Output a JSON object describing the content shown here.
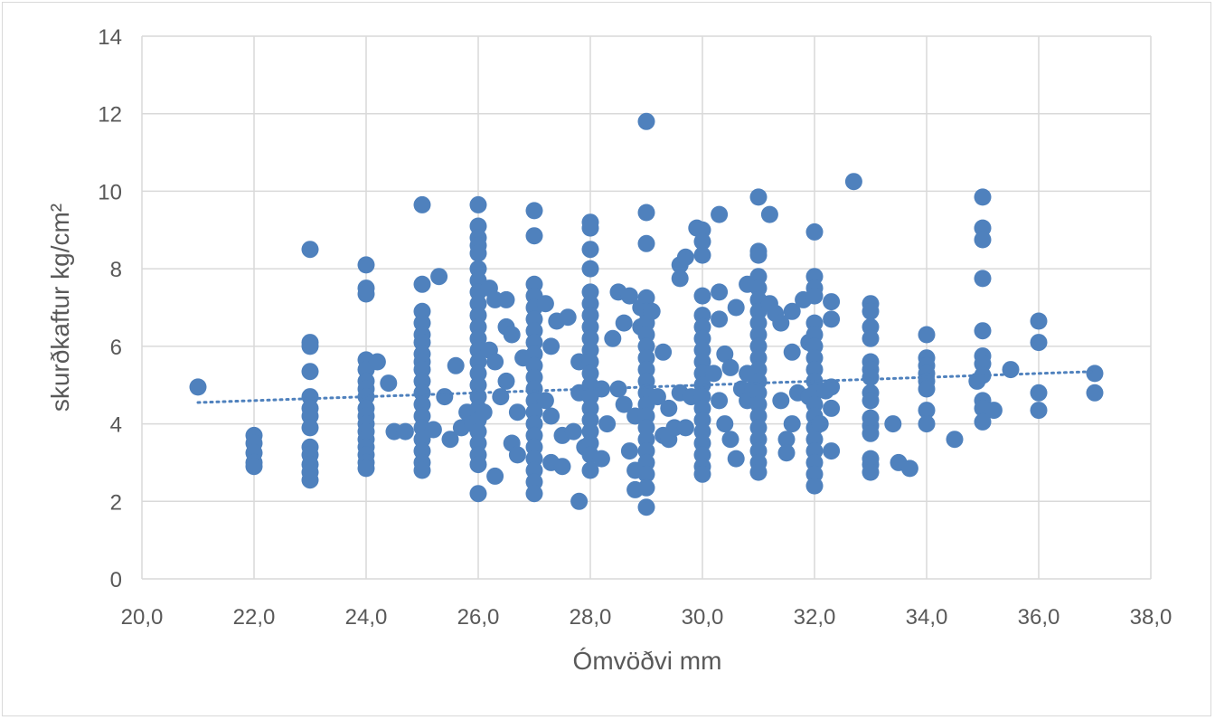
{
  "chart_data": {
    "type": "scatter",
    "xlabel": "Ómvöðvi mm",
    "ylabel": "skurðkaftur kg/cm²",
    "xlim": [
      20,
      38
    ],
    "ylim": [
      0,
      14
    ],
    "x_ticks": [
      "20,0",
      "22,0",
      "24,0",
      "26,0",
      "28,0",
      "30,0",
      "32,0",
      "34,0",
      "36,0",
      "38,0"
    ],
    "y_ticks": [
      "0",
      "2",
      "4",
      "6",
      "8",
      "10",
      "12",
      "14"
    ],
    "grid": true,
    "marker_color": "#4f81bd",
    "trendline": {
      "style": "dotted",
      "x": [
        21,
        37
      ],
      "y": [
        4.55,
        5.35
      ]
    },
    "points": [
      [
        21,
        4.95
      ],
      [
        22,
        3.7
      ],
      [
        22,
        3.5
      ],
      [
        22,
        3.25
      ],
      [
        22,
        3.0
      ],
      [
        22,
        2.9
      ],
      [
        23,
        8.5
      ],
      [
        23,
        6.1
      ],
      [
        23,
        6.0
      ],
      [
        23,
        5.35
      ],
      [
        23,
        4.7
      ],
      [
        23,
        4.4
      ],
      [
        23,
        4.2
      ],
      [
        23,
        3.9
      ],
      [
        23,
        3.4
      ],
      [
        23,
        3.2
      ],
      [
        23,
        2.95
      ],
      [
        23,
        2.75
      ],
      [
        23,
        2.55
      ],
      [
        24,
        8.1
      ],
      [
        24,
        7.5
      ],
      [
        24,
        7.35
      ],
      [
        24,
        5.65
      ],
      [
        24,
        5.4
      ],
      [
        24,
        5.1
      ],
      [
        24,
        4.9
      ],
      [
        24,
        4.7
      ],
      [
        24,
        4.4
      ],
      [
        24,
        4.2
      ],
      [
        24,
        4.0
      ],
      [
        24,
        3.8
      ],
      [
        24,
        3.6
      ],
      [
        24,
        3.4
      ],
      [
        24,
        3.2
      ],
      [
        24,
        3.0
      ],
      [
        24,
        2.85
      ],
      [
        24.2,
        5.6
      ],
      [
        24.4,
        5.05
      ],
      [
        24.5,
        3.8
      ],
      [
        24.7,
        3.8
      ],
      [
        25,
        9.65
      ],
      [
        25,
        7.6
      ],
      [
        25,
        6.9
      ],
      [
        25,
        6.6
      ],
      [
        25,
        6.3
      ],
      [
        25,
        6.1
      ],
      [
        25,
        5.8
      ],
      [
        25,
        5.6
      ],
      [
        25,
        5.4
      ],
      [
        25,
        5.1
      ],
      [
        25,
        4.8
      ],
      [
        25,
        4.5
      ],
      [
        25,
        4.2
      ],
      [
        25,
        3.9
      ],
      [
        25,
        3.6
      ],
      [
        25,
        3.3
      ],
      [
        25,
        3.0
      ],
      [
        25,
        2.8
      ],
      [
        25.3,
        7.8
      ],
      [
        25.2,
        3.85
      ],
      [
        25.4,
        4.7
      ],
      [
        25.5,
        3.6
      ],
      [
        25.6,
        5.5
      ],
      [
        25.7,
        3.9
      ],
      [
        25.8,
        4.3
      ],
      [
        25.9,
        4.0
      ],
      [
        26,
        9.65
      ],
      [
        26,
        9.1
      ],
      [
        26,
        8.8
      ],
      [
        26,
        8.6
      ],
      [
        26,
        8.4
      ],
      [
        26,
        8.0
      ],
      [
        26,
        7.7
      ],
      [
        26,
        7.4
      ],
      [
        26,
        7.1
      ],
      [
        26,
        6.8
      ],
      [
        26,
        6.5
      ],
      [
        26,
        6.2
      ],
      [
        26,
        5.9
      ],
      [
        26,
        5.6
      ],
      [
        26,
        5.3
      ],
      [
        26,
        5.0
      ],
      [
        26,
        4.7
      ],
      [
        26,
        4.4
      ],
      [
        26,
        4.1
      ],
      [
        26,
        3.8
      ],
      [
        26,
        3.5
      ],
      [
        26,
        3.2
      ],
      [
        26,
        2.95
      ],
      [
        26,
        2.2
      ],
      [
        26.2,
        7.5
      ],
      [
        26.3,
        7.2
      ],
      [
        26.2,
        5.9
      ],
      [
        26.3,
        5.6
      ],
      [
        26.1,
        4.3
      ],
      [
        26.3,
        2.65
      ],
      [
        26.5,
        7.2
      ],
      [
        26.5,
        6.5
      ],
      [
        26.6,
        6.3
      ],
      [
        26.4,
        4.7
      ],
      [
        26.5,
        5.1
      ],
      [
        26.6,
        3.5
      ],
      [
        26.7,
        3.2
      ],
      [
        26.8,
        5.7
      ],
      [
        26.7,
        4.3
      ],
      [
        27,
        9.5
      ],
      [
        27,
        8.85
      ],
      [
        27,
        7.6
      ],
      [
        27,
        7.3
      ],
      [
        27,
        7.0
      ],
      [
        27,
        6.7
      ],
      [
        27,
        6.4
      ],
      [
        27,
        6.1
      ],
      [
        27,
        5.8
      ],
      [
        27,
        5.5
      ],
      [
        27,
        5.2
      ],
      [
        27,
        4.9
      ],
      [
        27,
        4.6
      ],
      [
        27,
        4.3
      ],
      [
        27,
        4.0
      ],
      [
        27,
        3.7
      ],
      [
        27,
        3.4
      ],
      [
        27,
        3.1
      ],
      [
        27,
        2.8
      ],
      [
        27,
        2.5
      ],
      [
        27,
        2.2
      ],
      [
        27.2,
        7.1
      ],
      [
        27.3,
        6.0
      ],
      [
        27.4,
        6.65
      ],
      [
        27.2,
        4.6
      ],
      [
        27.3,
        4.2
      ],
      [
        27.3,
        3.0
      ],
      [
        27.5,
        2.9
      ],
      [
        27.6,
        6.75
      ],
      [
        27.5,
        3.7
      ],
      [
        27.7,
        3.8
      ],
      [
        27.8,
        2.0
      ],
      [
        27.8,
        5.6
      ],
      [
        27.8,
        4.8
      ],
      [
        27.9,
        3.4
      ],
      [
        28,
        9.2
      ],
      [
        28,
        9.05
      ],
      [
        28,
        8.5
      ],
      [
        28,
        8.0
      ],
      [
        28,
        7.4
      ],
      [
        28,
        7.1
      ],
      [
        28,
        6.8
      ],
      [
        28,
        6.5
      ],
      [
        28,
        6.2
      ],
      [
        28,
        5.9
      ],
      [
        28,
        5.6
      ],
      [
        28,
        5.3
      ],
      [
        28,
        5.0
      ],
      [
        28,
        4.7
      ],
      [
        28,
        4.4
      ],
      [
        28,
        4.1
      ],
      [
        28,
        3.8
      ],
      [
        28,
        3.5
      ],
      [
        28,
        3.2
      ],
      [
        28,
        2.8
      ],
      [
        28.2,
        4.9
      ],
      [
        28.2,
        3.1
      ],
      [
        28.3,
        4.0
      ],
      [
        28.4,
        6.2
      ],
      [
        28.5,
        7.4
      ],
      [
        28.5,
        4.9
      ],
      [
        28.6,
        6.6
      ],
      [
        28.6,
        4.5
      ],
      [
        28.7,
        3.3
      ],
      [
        28.7,
        7.3
      ],
      [
        28.8,
        2.8
      ],
      [
        28.8,
        2.3
      ],
      [
        28.8,
        4.2
      ],
      [
        28.9,
        7.0
      ],
      [
        28.9,
        6.5
      ],
      [
        29,
        11.8
      ],
      [
        29,
        9.45
      ],
      [
        29,
        8.65
      ],
      [
        29,
        7.25
      ],
      [
        29,
        6.9
      ],
      [
        29,
        6.6
      ],
      [
        29,
        6.3
      ],
      [
        29,
        6.0
      ],
      [
        29,
        5.7
      ],
      [
        29,
        5.4
      ],
      [
        29,
        5.1
      ],
      [
        29,
        4.8
      ],
      [
        29,
        4.5
      ],
      [
        29,
        4.2
      ],
      [
        29,
        3.9
      ],
      [
        29,
        3.6
      ],
      [
        29,
        3.3
      ],
      [
        29,
        3.0
      ],
      [
        29,
        2.7
      ],
      [
        29,
        2.35
      ],
      [
        29,
        1.85
      ],
      [
        29.1,
        6.9
      ],
      [
        29.2,
        4.7
      ],
      [
        29.3,
        5.85
      ],
      [
        29.3,
        3.7
      ],
      [
        29.4,
        3.6
      ],
      [
        29.4,
        4.4
      ],
      [
        29.5,
        3.9
      ],
      [
        29.6,
        7.75
      ],
      [
        29.6,
        8.1
      ],
      [
        29.7,
        8.3
      ],
      [
        29.6,
        4.8
      ],
      [
        29.7,
        3.9
      ],
      [
        29.8,
        4.7
      ],
      [
        29.9,
        9.05
      ],
      [
        30,
        9.0
      ],
      [
        30,
        8.7
      ],
      [
        30,
        8.35
      ],
      [
        30,
        7.3
      ],
      [
        30,
        6.8
      ],
      [
        30,
        6.5
      ],
      [
        30,
        6.2
      ],
      [
        30,
        5.9
      ],
      [
        30,
        5.6
      ],
      [
        30,
        5.3
      ],
      [
        30,
        5.0
      ],
      [
        30,
        4.7
      ],
      [
        30,
        4.4
      ],
      [
        30,
        4.1
      ],
      [
        30,
        3.8
      ],
      [
        30,
        3.5
      ],
      [
        30,
        3.2
      ],
      [
        30,
        2.9
      ],
      [
        30,
        2.7
      ],
      [
        30.3,
        9.4
      ],
      [
        30.3,
        7.4
      ],
      [
        30.3,
        6.7
      ],
      [
        30.2,
        5.3
      ],
      [
        30.3,
        4.6
      ],
      [
        30.4,
        5.8
      ],
      [
        30.4,
        4.0
      ],
      [
        30.5,
        3.6
      ],
      [
        30.5,
        5.45
      ],
      [
        30.6,
        7.0
      ],
      [
        30.6,
        3.1
      ],
      [
        30.7,
        4.9
      ],
      [
        30.8,
        4.6
      ],
      [
        30.8,
        5.3
      ],
      [
        30.9,
        4.9
      ],
      [
        30.8,
        7.6
      ],
      [
        31,
        9.85
      ],
      [
        31,
        8.45
      ],
      [
        31,
        8.35
      ],
      [
        31,
        7.8
      ],
      [
        31,
        7.5
      ],
      [
        31,
        7.2
      ],
      [
        31,
        6.9
      ],
      [
        31,
        6.6
      ],
      [
        31,
        6.3
      ],
      [
        31,
        6.0
      ],
      [
        31,
        5.7
      ],
      [
        31,
        5.4
      ],
      [
        31,
        5.1
      ],
      [
        31,
        4.8
      ],
      [
        31,
        4.5
      ],
      [
        31,
        4.2
      ],
      [
        31,
        3.9
      ],
      [
        31,
        3.6
      ],
      [
        31,
        3.3
      ],
      [
        31,
        3.0
      ],
      [
        31,
        2.75
      ],
      [
        31.2,
        9.4
      ],
      [
        31.2,
        7.1
      ],
      [
        31.3,
        6.85
      ],
      [
        31.4,
        6.6
      ],
      [
        31.4,
        4.6
      ],
      [
        31.5,
        3.6
      ],
      [
        31.5,
        3.25
      ],
      [
        31.6,
        6.9
      ],
      [
        31.6,
        5.85
      ],
      [
        31.6,
        4.0
      ],
      [
        31.7,
        4.8
      ],
      [
        31.8,
        7.2
      ],
      [
        31.9,
        6.1
      ],
      [
        31.9,
        4.7
      ],
      [
        32,
        8.95
      ],
      [
        32,
        7.8
      ],
      [
        32,
        7.5
      ],
      [
        32,
        7.3
      ],
      [
        32,
        6.6
      ],
      [
        32,
        6.3
      ],
      [
        32,
        6.0
      ],
      [
        32,
        5.7
      ],
      [
        32,
        5.4
      ],
      [
        32,
        5.1
      ],
      [
        32,
        4.8
      ],
      [
        32,
        4.5
      ],
      [
        32,
        4.2
      ],
      [
        32,
        3.9
      ],
      [
        32,
        3.6
      ],
      [
        32,
        3.3
      ],
      [
        32,
        3.0
      ],
      [
        32,
        2.7
      ],
      [
        32,
        2.4
      ],
      [
        32.1,
        4.0
      ],
      [
        32.2,
        4.85
      ],
      [
        32.3,
        7.15
      ],
      [
        32.3,
        6.7
      ],
      [
        32.3,
        4.95
      ],
      [
        32.3,
        4.4
      ],
      [
        32.3,
        3.3
      ],
      [
        32.7,
        10.25
      ],
      [
        33,
        7.1
      ],
      [
        33,
        6.9
      ],
      [
        33,
        6.5
      ],
      [
        33,
        6.2
      ],
      [
        33,
        5.6
      ],
      [
        33,
        5.4
      ],
      [
        33,
        5.2
      ],
      [
        33,
        4.8
      ],
      [
        33,
        4.6
      ],
      [
        33,
        4.15
      ],
      [
        33,
        3.95
      ],
      [
        33,
        3.75
      ],
      [
        33,
        3.1
      ],
      [
        33,
        2.95
      ],
      [
        33,
        2.75
      ],
      [
        33.4,
        4.0
      ],
      [
        33.5,
        3.0
      ],
      [
        33.7,
        2.85
      ],
      [
        34,
        6.3
      ],
      [
        34,
        5.7
      ],
      [
        34,
        5.5
      ],
      [
        34,
        5.3
      ],
      [
        34,
        5.1
      ],
      [
        34,
        4.9
      ],
      [
        34,
        4.35
      ],
      [
        34,
        4.0
      ],
      [
        34.5,
        3.6
      ],
      [
        34.9,
        5.1
      ],
      [
        35,
        9.85
      ],
      [
        35,
        9.05
      ],
      [
        35,
        8.75
      ],
      [
        35,
        7.75
      ],
      [
        35,
        6.4
      ],
      [
        35,
        5.75
      ],
      [
        35,
        5.55
      ],
      [
        35,
        5.25
      ],
      [
        35,
        4.6
      ],
      [
        35,
        4.4
      ],
      [
        35,
        4.05
      ],
      [
        35.2,
        4.35
      ],
      [
        35.5,
        5.4
      ],
      [
        36,
        6.65
      ],
      [
        36,
        6.1
      ],
      [
        36,
        4.8
      ],
      [
        36,
        4.35
      ],
      [
        37,
        5.3
      ],
      [
        37,
        4.8
      ]
    ]
  }
}
